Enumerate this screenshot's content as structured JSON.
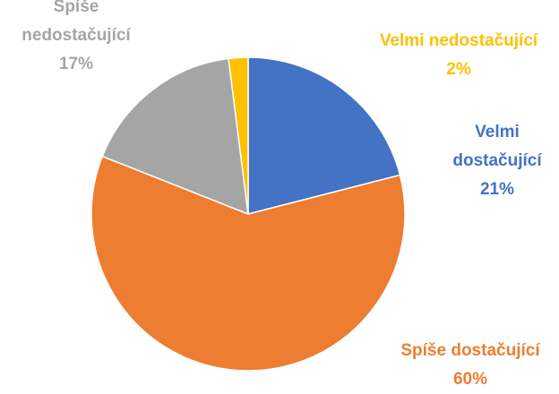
{
  "chart_data": {
    "type": "pie",
    "categories": [
      "Velmi dostačující",
      "Spíše dostačující",
      "Spíše nedostačující",
      "Velmi nedostačující"
    ],
    "values": [
      21,
      60,
      17,
      2
    ],
    "value_labels": [
      "21%",
      "60%",
      "17%",
      "2%"
    ],
    "colors": [
      "#4472c4",
      "#ed7d31",
      "#a5a5a5",
      "#ffc000"
    ]
  }
}
